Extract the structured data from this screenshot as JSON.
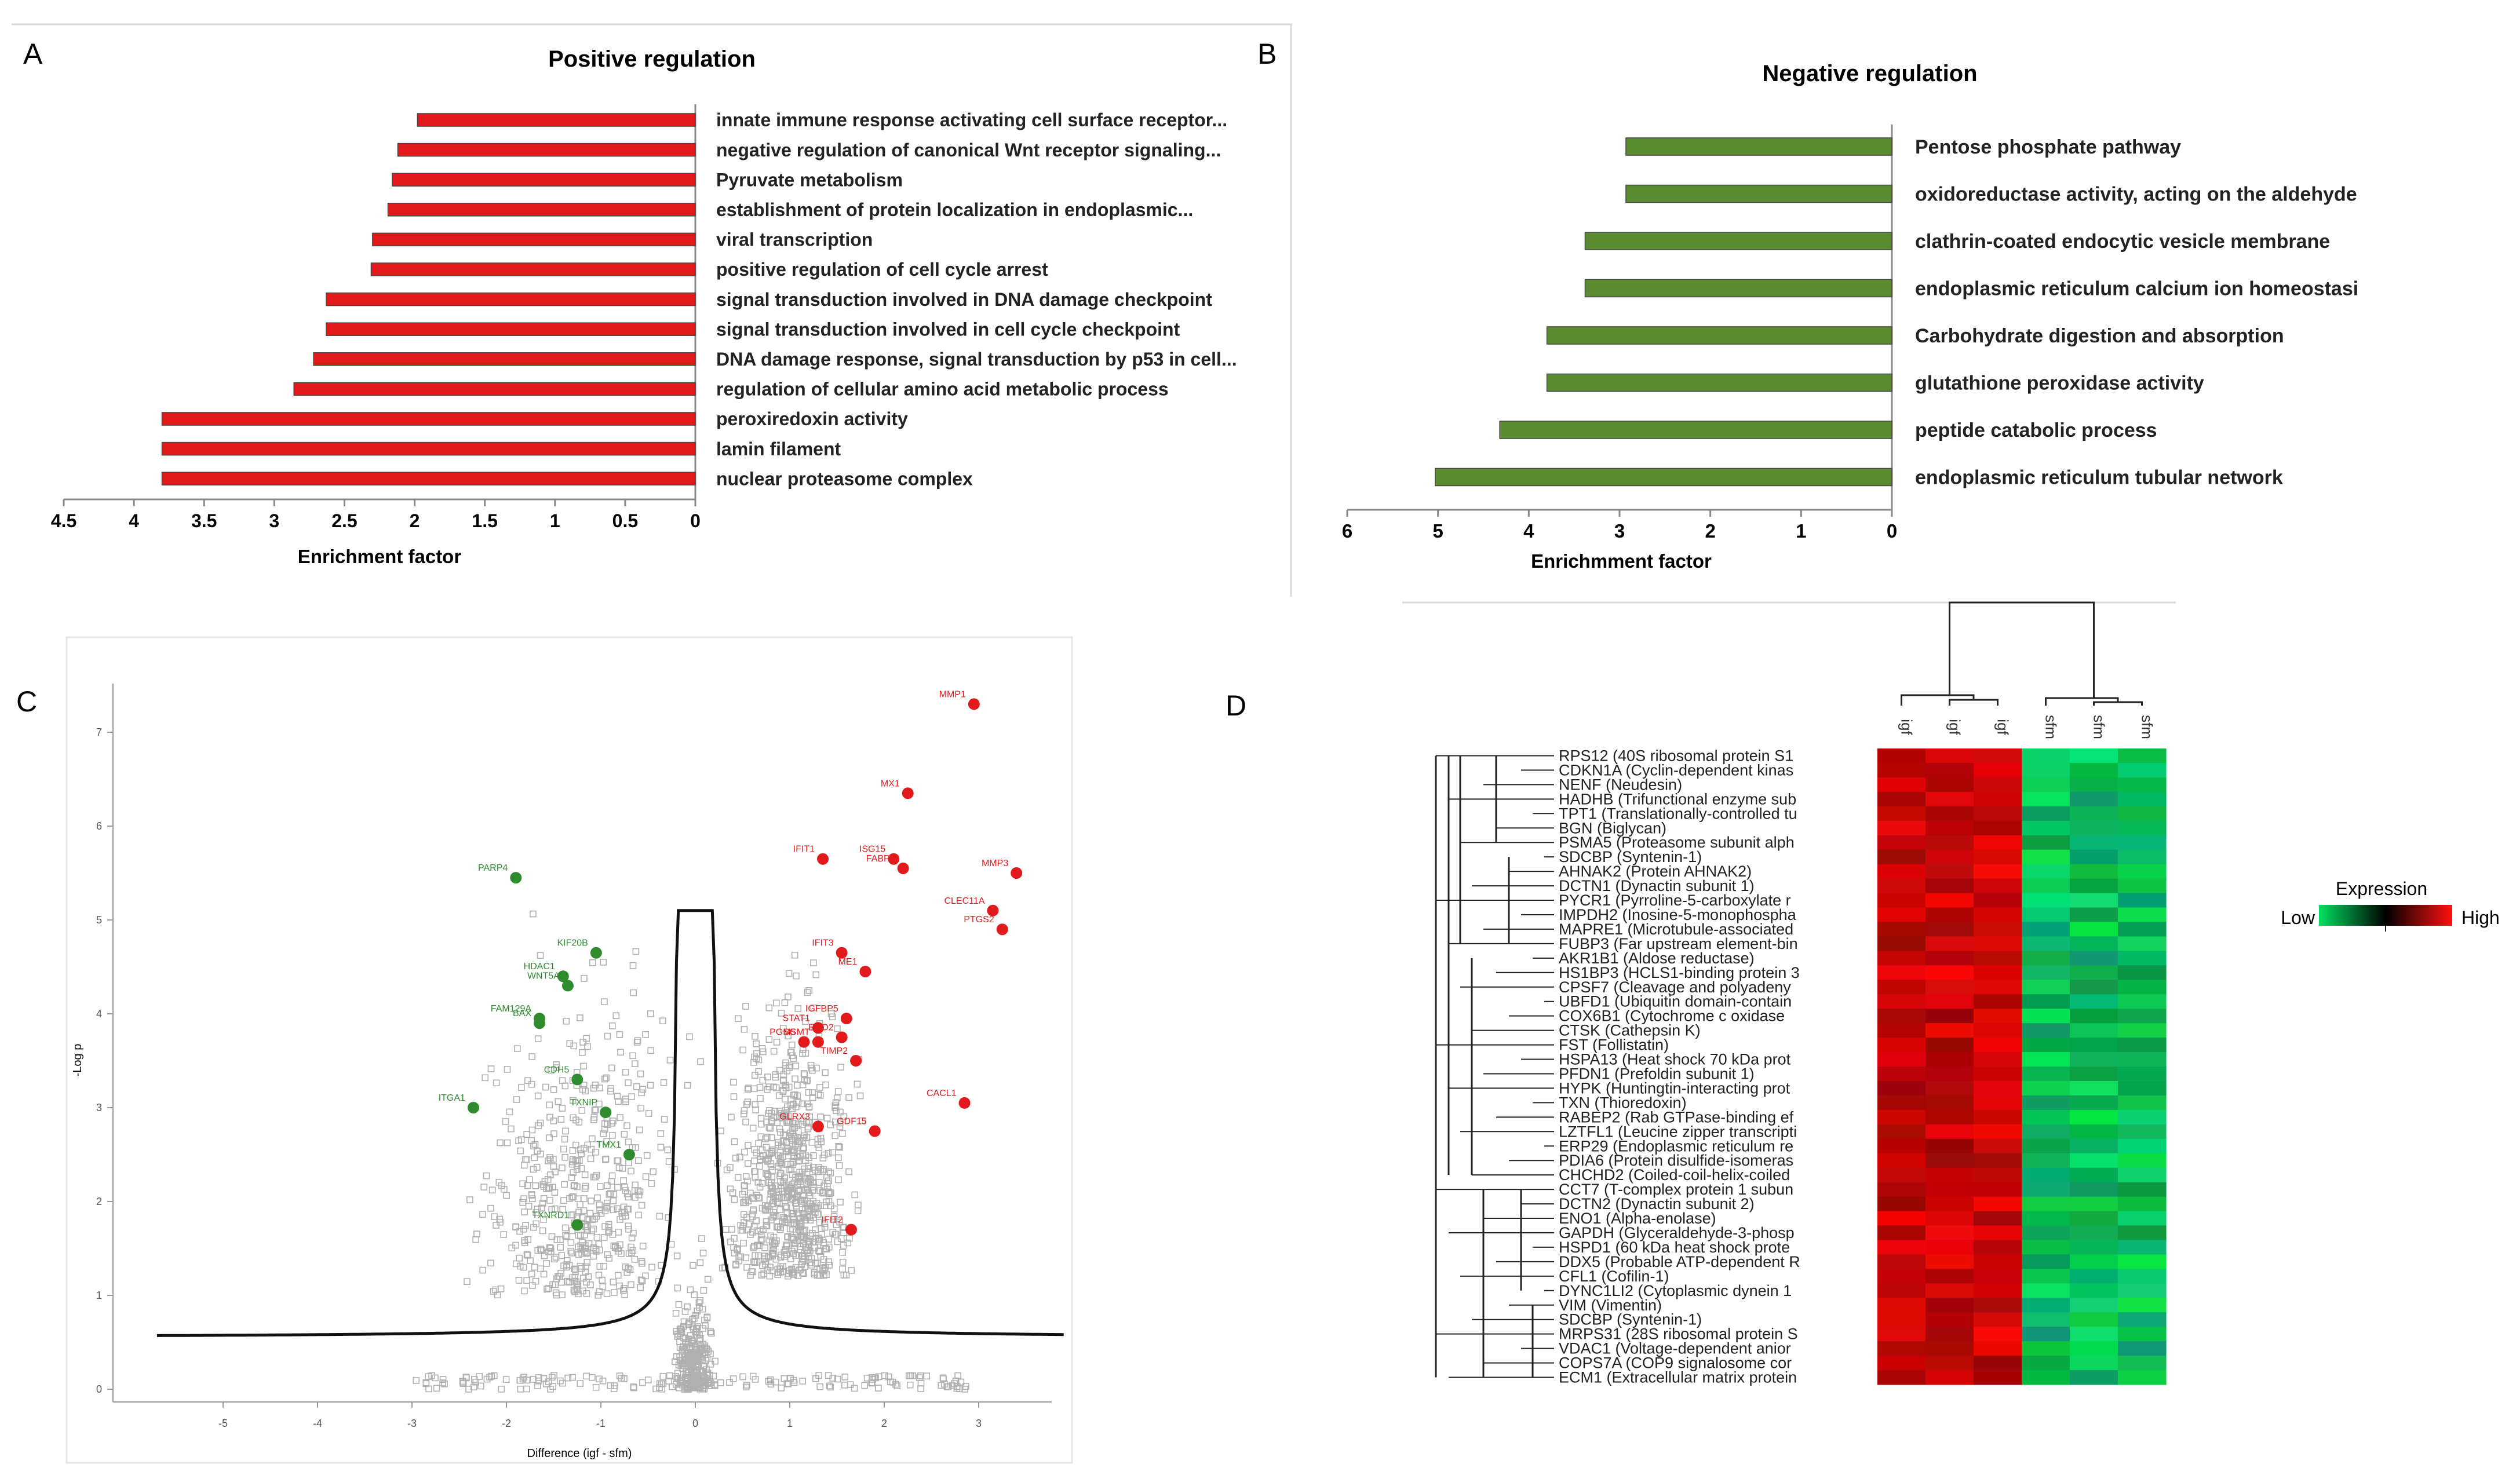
{
  "panels": {
    "A": {
      "letter": "A"
    },
    "B": {
      "letter": "B"
    },
    "C": {
      "letter": "C"
    },
    "D": {
      "letter": "D"
    }
  },
  "chart_data": [
    {
      "id": "A",
      "type": "bar",
      "orientation": "horizontal",
      "title": "Positive regulation",
      "xlabel": "Enrichment factor",
      "xlim": [
        0,
        4.5
      ],
      "x_ticks": [
        "4.5",
        "4",
        "3.5",
        "3",
        "2.5",
        "2",
        "1.5",
        "1",
        "0.5",
        "0"
      ],
      "color": "#e31a1c",
      "categories": [
        "innate immune response activating cell surface receptor...",
        "negative regulation of canonical Wnt receptor signaling...",
        "Pyruvate metabolism",
        "establishment of protein localization in endoplasmic...",
        "viral transcription",
        "positive regulation of cell cycle arrest",
        "signal transduction involved in DNA damage checkpoint",
        "signal transduction involved in cell cycle checkpoint",
        "DNA damage response, signal transduction by p53 in cell...",
        "regulation of cellular amino acid metabolic process",
        "peroxiredoxin activity",
        "lamin filament",
        "nuclear proteasome complex"
      ],
      "values": [
        1.98,
        2.12,
        2.16,
        2.19,
        2.3,
        2.31,
        2.63,
        2.63,
        2.72,
        2.86,
        3.8,
        3.8,
        3.8
      ]
    },
    {
      "id": "B",
      "type": "bar",
      "orientation": "horizontal",
      "title": "Negative regulation",
      "xlabel": "Enrichmment factor",
      "xlim": [
        0,
        6
      ],
      "x_ticks": [
        "6",
        "5",
        "4",
        "3",
        "2",
        "1",
        "0"
      ],
      "color": "#5b8c32",
      "categories": [
        "Pentose phosphate pathway",
        "oxidoreductase activity, acting on the aldehyde",
        "clathrin-coated endocytic vesicle membrane",
        "endoplasmic reticulum calcium ion homeostasi",
        "Carbohydrate digestion and absorption",
        "glutathione peroxidase activity",
        "peptide catabolic process",
        "endoplasmic reticulum tubular network"
      ],
      "values": [
        2.93,
        2.93,
        3.38,
        3.38,
        3.8,
        3.8,
        4.32,
        5.03
      ]
    },
    {
      "id": "C",
      "type": "scatter",
      "title": "",
      "xlabel": "Difference (igf - sfm)",
      "ylabel": "-Log p",
      "xlim": [
        -6,
        3.8
      ],
      "ylim": [
        -0.2,
        7.5
      ],
      "x_ticks": [
        "-5",
        "-4",
        "-3",
        "-2",
        "-1",
        "0",
        "1",
        "2",
        "3"
      ],
      "y_ticks": [
        "0",
        "1",
        "2",
        "3",
        "4",
        "5",
        "6",
        "7"
      ],
      "up_color": "#e31a1c",
      "down_color": "#2e8b2e",
      "highlighted_up": [
        {
          "label": "MMP1",
          "x": 2.95,
          "y": 7.3
        },
        {
          "label": "MX1",
          "x": 2.25,
          "y": 6.35
        },
        {
          "label": "IFIT1",
          "x": 1.35,
          "y": 5.65
        },
        {
          "label": "ISG15",
          "x": 2.1,
          "y": 5.65
        },
        {
          "label": "FABP3",
          "x": 2.2,
          "y": 5.55
        },
        {
          "label": "MMP3",
          "x": 3.4,
          "y": 5.5
        },
        {
          "label": "CLEC11A",
          "x": 3.15,
          "y": 5.1
        },
        {
          "label": "PTGS2",
          "x": 3.25,
          "y": 4.9
        },
        {
          "label": "IFIT3",
          "x": 1.55,
          "y": 4.65
        },
        {
          "label": "ME1",
          "x": 1.8,
          "y": 4.45
        },
        {
          "label": "IGFBP5",
          "x": 1.6,
          "y": 3.95
        },
        {
          "label": "STAT1",
          "x": 1.3,
          "y": 3.85
        },
        {
          "label": "ENO2",
          "x": 1.55,
          "y": 3.75
        },
        {
          "label": "SGMT",
          "x": 1.3,
          "y": 3.7
        },
        {
          "label": "PGM5",
          "x": 1.15,
          "y": 3.7
        },
        {
          "label": "TIMP2",
          "x": 1.7,
          "y": 3.5
        },
        {
          "label": "CACL1",
          "x": 2.85,
          "y": 3.05
        },
        {
          "label": "GLRX3",
          "x": 1.3,
          "y": 2.8
        },
        {
          "label": "GDF15",
          "x": 1.9,
          "y": 2.75
        },
        {
          "label": "IFIT2",
          "x": 1.65,
          "y": 1.7
        }
      ],
      "highlighted_down": [
        {
          "label": "PARP4",
          "x": -1.9,
          "y": 5.45
        },
        {
          "label": "KIF20B",
          "x": -1.05,
          "y": 4.65
        },
        {
          "label": "HDAC1",
          "x": -1.4,
          "y": 4.4
        },
        {
          "label": "WNT5A",
          "x": -1.35,
          "y": 4.3
        },
        {
          "label": "FAM129A",
          "x": -1.65,
          "y": 3.95
        },
        {
          "label": "BAX",
          "x": -1.65,
          "y": 3.9
        },
        {
          "label": "CDH5",
          "x": -1.25,
          "y": 3.3
        },
        {
          "label": "ITGA1",
          "x": -2.35,
          "y": 3.0
        },
        {
          "label": "TXNIP",
          "x": -0.95,
          "y": 2.95
        },
        {
          "label": "TMX1",
          "x": -0.7,
          "y": 2.5
        },
        {
          "label": "TXNRD1",
          "x": -1.25,
          "y": 1.75
        }
      ]
    },
    {
      "id": "D",
      "type": "heatmap",
      "title": "",
      "columns": [
        "igf",
        "igf",
        "igf",
        "sfm",
        "sfm",
        "sfm"
      ],
      "legend_title": "Expression",
      "legend_low": "Low",
      "legend_high": "High",
      "rows": [
        "RPS12 (40S ribosomal protein S1",
        "CDKN1A (Cyclin-dependent kinas",
        "NENF (Neudesin)",
        "HADHB (Trifunctional enzyme sub",
        "TPT1 (Translationally-controlled tu",
        "BGN (Biglycan)",
        "PSMA5 (Proteasome subunit alph",
        "SDCBP (Syntenin-1)",
        "AHNAK2 (Protein AHNAK2)",
        "DCTN1 (Dynactin subunit 1)",
        "PYCR1 (Pyrroline-5-carboxylate r",
        "IMPDH2 (Inosine-5-monophospha",
        "MAPRE1 (Microtubule-associated",
        "FUBP3 (Far upstream element-bin",
        "AKR1B1 (Aldose reductase)",
        "HS1BP3 (HCLS1-binding protein 3",
        "CPSF7 (Cleavage and polyadeny",
        "UBFD1 (Ubiquitin domain-contain",
        "COX6B1 (Cytochrome c oxidase",
        "CTSK (Cathepsin K)",
        "FST (Follistatin)",
        "HSPA13 (Heat shock 70 kDa prot",
        "PFDN1 (Prefoldin subunit 1)",
        "HYPK (Huntingtin-interacting prot",
        "TXN (Thioredoxin)",
        "RABEP2 (Rab GTPase-binding ef",
        "LZTFL1 (Leucine zipper transcripti",
        "ERP29 (Endoplasmic reticulum re",
        "PDIA6 (Protein disulfide-isomeras",
        "CHCHD2 (Coiled-coil-helix-coiled",
        "CCT7 (T-complex protein 1 subun",
        "DCTN2 (Dynactin subunit 2)",
        "ENO1 (Alpha-enolase)",
        "GAPDH (Glyceraldehyde-3-phosp",
        "HSPD1 (60 kDa heat shock prote",
        "DDX5 (Probable ATP-dependent R",
        "CFL1 (Cofilin-1)",
        "DYNC1LI2 (Cytoplasmic dynein 1",
        "VIM (Vimentin)",
        "SDCBP (Syntenin-1)",
        "MRPS31 (28S ribosomal protein S",
        "VDAC1 (Voltage-dependent anior",
        "COPS7A (COP9 signalosome cor",
        "ECM1 (Extracellular matrix protein"
      ]
    }
  ]
}
